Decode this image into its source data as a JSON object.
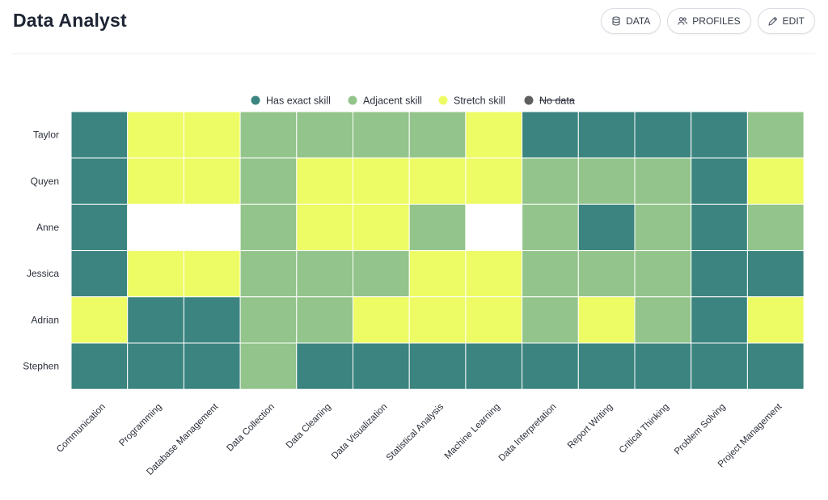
{
  "header": {
    "title": "Data Analyst",
    "buttons": [
      {
        "label": "DATA",
        "icon": "database-icon"
      },
      {
        "label": "PROFILES",
        "icon": "users-icon"
      },
      {
        "label": "EDIT",
        "icon": "pencil-icon"
      }
    ]
  },
  "chart_data": {
    "type": "heatmap",
    "legend": [
      {
        "key": "exact",
        "label": "Has exact skill",
        "color": "#3b8480"
      },
      {
        "key": "adjacent",
        "label": "Adjacent skill",
        "color": "#93c48b"
      },
      {
        "key": "stretch",
        "label": "Stretch skill",
        "color": "#edfb64"
      },
      {
        "key": "nodata",
        "label": "No data",
        "color": "#5f5f5f",
        "disabled": true
      }
    ],
    "legend_placement": "top-center",
    "rows": [
      "Taylor",
      "Quyen",
      "Anne",
      "Jessica",
      "Adrian",
      "Stephen"
    ],
    "columns": [
      "Communication",
      "Programming",
      "Database Management",
      "Data Collection",
      "Data Cleaning",
      "Data Visualization",
      "Statistical Analysis",
      "Machine Learning",
      "Data Interpretation",
      "Report Writing",
      "Critical Thinking",
      "Problem Solving",
      "Project Management"
    ],
    "values": [
      [
        "exact",
        "stretch",
        "stretch",
        "adjacent",
        "adjacent",
        "adjacent",
        "adjacent",
        "stretch",
        "exact",
        "exact",
        "exact",
        "exact",
        "adjacent"
      ],
      [
        "exact",
        "stretch",
        "stretch",
        "adjacent",
        "stretch",
        "stretch",
        "stretch",
        "stretch",
        "adjacent",
        "adjacent",
        "adjacent",
        "exact",
        "stretch"
      ],
      [
        "exact",
        "nodata",
        "nodata",
        "adjacent",
        "stretch",
        "stretch",
        "adjacent",
        "nodata",
        "adjacent",
        "exact",
        "adjacent",
        "exact",
        "adjacent"
      ],
      [
        "exact",
        "stretch",
        "stretch",
        "adjacent",
        "adjacent",
        "adjacent",
        "stretch",
        "stretch",
        "adjacent",
        "adjacent",
        "adjacent",
        "exact",
        "exact"
      ],
      [
        "stretch",
        "exact",
        "exact",
        "adjacent",
        "adjacent",
        "stretch",
        "stretch",
        "stretch",
        "adjacent",
        "stretch",
        "adjacent",
        "exact",
        "stretch"
      ],
      [
        "exact",
        "exact",
        "exact",
        "adjacent",
        "exact",
        "exact",
        "exact",
        "exact",
        "exact",
        "exact",
        "exact",
        "exact",
        "exact"
      ]
    ]
  }
}
